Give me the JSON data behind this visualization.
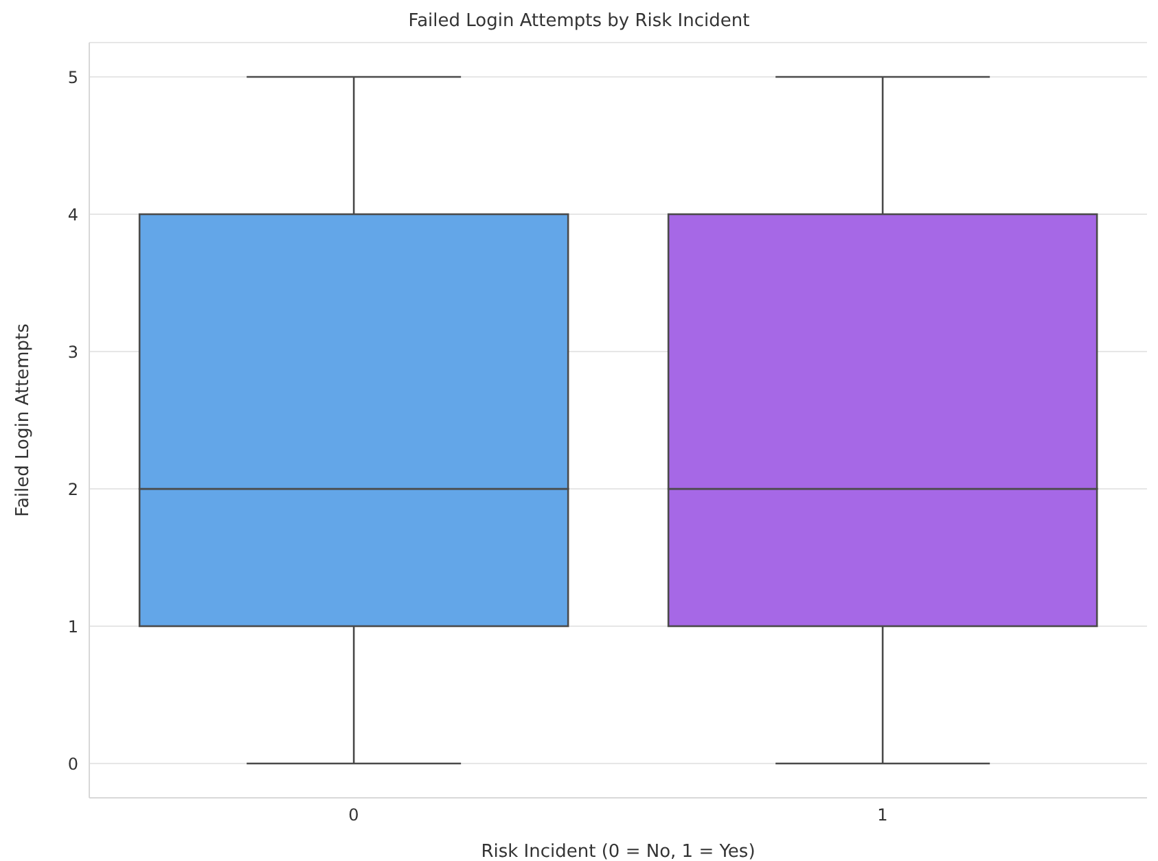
{
  "chart_data": {
    "type": "box",
    "title": "Failed Login Attempts by Risk Incident",
    "xlabel": "Risk Incident (0 = No, 1 = Yes)",
    "ylabel": "Failed Login Attempts",
    "categories": [
      "0",
      "1"
    ],
    "boxes": [
      {
        "low": 0,
        "q1": 1,
        "median": 2,
        "q3": 4,
        "high": 5
      },
      {
        "low": 0,
        "q1": 1,
        "median": 2,
        "q3": 4,
        "high": 5
      }
    ],
    "colors": [
      "#63a6e8",
      "#a668e6"
    ],
    "ylim": [
      -0.25,
      5.25
    ],
    "yticks": [
      0,
      1,
      2,
      3,
      4,
      5
    ],
    "grid": "y"
  }
}
